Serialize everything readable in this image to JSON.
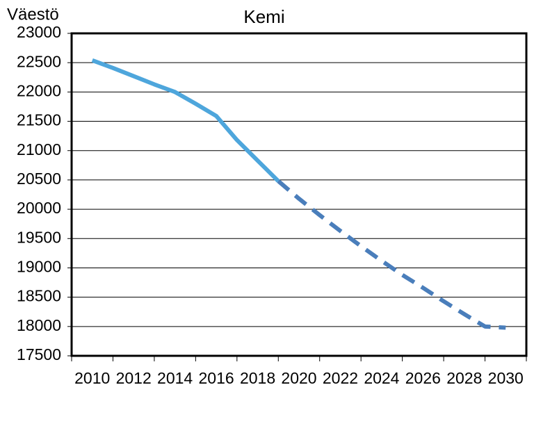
{
  "chart_data": {
    "type": "line",
    "title": "Kemi",
    "y_label": "Väestö",
    "x": [
      2010,
      2011,
      2012,
      2013,
      2014,
      2015,
      2016,
      2017,
      2018,
      2019,
      2020,
      2021,
      2022,
      2023,
      2024,
      2025,
      2026,
      2027,
      2028,
      2029,
      2030
    ],
    "series": [
      {
        "color": "#4ea6dc",
        "dashed": false,
        "values": [
          22540,
          22410,
          22270,
          22130,
          22000,
          21800,
          21590,
          21180,
          20830,
          20480,
          null,
          null,
          null,
          null,
          null,
          null,
          null,
          null,
          null,
          null,
          null
        ]
      },
      {
        "color": "#4a7ebb",
        "dashed": true,
        "values": [
          null,
          null,
          null,
          null,
          null,
          null,
          null,
          null,
          null,
          20480,
          20180,
          19900,
          19630,
          19370,
          19120,
          18880,
          18660,
          18430,
          18210,
          18000,
          17980
        ]
      }
    ],
    "xlim": [
      2009,
      2031
    ],
    "xticks": [
      2010,
      2012,
      2014,
      2016,
      2018,
      2020,
      2022,
      2024,
      2026,
      2028,
      2030
    ],
    "ylim": [
      17500,
      23000
    ],
    "yticks": [
      17500,
      18000,
      18500,
      19000,
      19500,
      20000,
      20500,
      21000,
      21500,
      22000,
      22500,
      23000
    ],
    "grid": true
  }
}
